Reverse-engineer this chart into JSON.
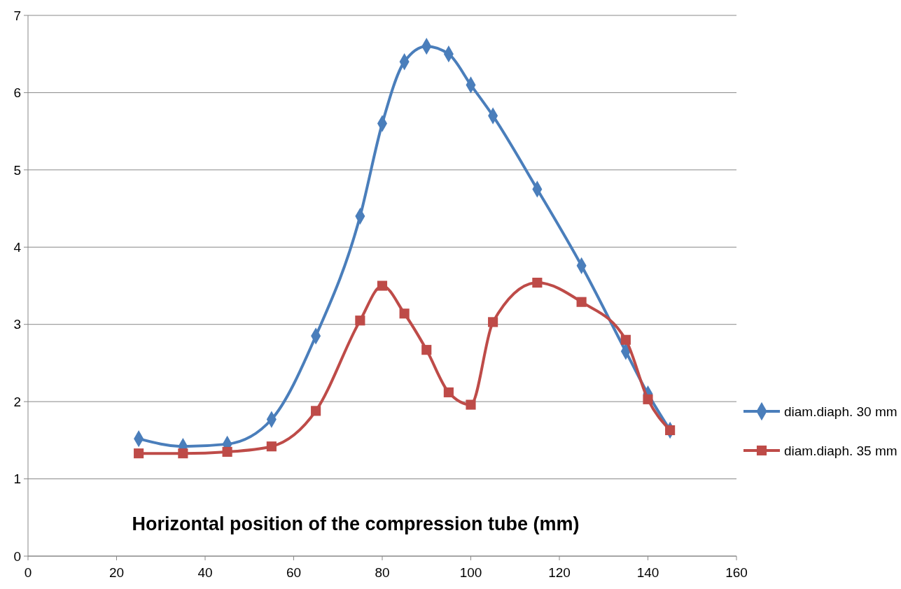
{
  "chart_data": {
    "type": "line",
    "xlabel": "Horizontal position of the compression tube (mm)",
    "x": [
      25,
      35,
      45,
      55,
      65,
      75,
      80,
      85,
      90,
      95,
      100,
      105,
      115,
      125,
      135,
      140,
      145
    ],
    "series": [
      {
        "name": "diam.diaph. 30 mm",
        "color": "#4a7ebb",
        "marker": "diamond",
        "values": [
          1.52,
          1.42,
          1.45,
          1.77,
          2.85,
          4.4,
          5.6,
          6.4,
          6.6,
          6.5,
          6.1,
          5.7,
          4.75,
          3.76,
          2.65,
          2.1,
          1.63
        ]
      },
      {
        "name": "diam.diaph. 35 mm",
        "color": "#be4b48",
        "marker": "square",
        "values": [
          1.33,
          1.33,
          1.35,
          1.42,
          1.88,
          3.05,
          3.5,
          3.14,
          2.67,
          2.12,
          1.96,
          3.03,
          3.54,
          3.29,
          2.8,
          2.03,
          1.63
        ]
      }
    ],
    "xlim": [
      0,
      160
    ],
    "xticks": [
      0,
      20,
      40,
      60,
      80,
      100,
      120,
      140,
      160
    ],
    "ylim": [
      0,
      7
    ],
    "yticks": [
      0,
      1,
      2,
      3,
      4,
      5,
      6,
      7
    ],
    "grid": "y",
    "legend": "right",
    "line_style": "solid"
  }
}
